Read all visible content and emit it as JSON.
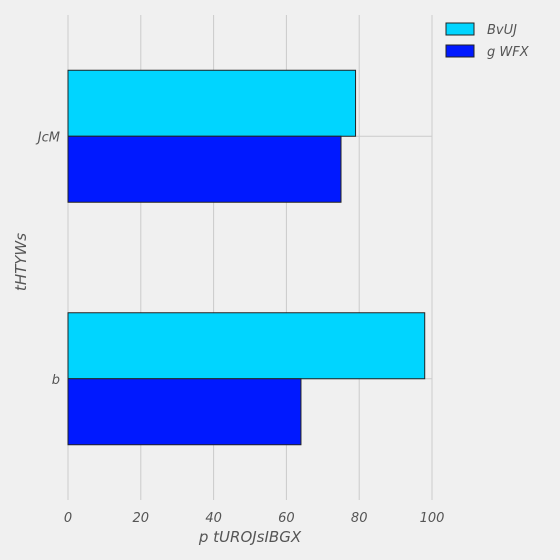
{
  "chart_data": {
    "type": "bar",
    "orientation": "horizontal",
    "categories": [
      "b",
      "JcM"
    ],
    "series": [
      {
        "name": "BvUJ",
        "values": [
          98,
          79
        ],
        "color": "#00d5ff"
      },
      {
        "name": "g WFX",
        "values": [
          64,
          75
        ],
        "color": "#0019ff"
      }
    ],
    "xticks": [
      "0",
      "20",
      "40",
      "60",
      "80",
      "100"
    ],
    "xlim": [
      0,
      100
    ],
    "xlabel": "p  tUROJsIBGX",
    "ylabel": "tHTYWs",
    "grid": true,
    "legend_position": "top-right"
  }
}
